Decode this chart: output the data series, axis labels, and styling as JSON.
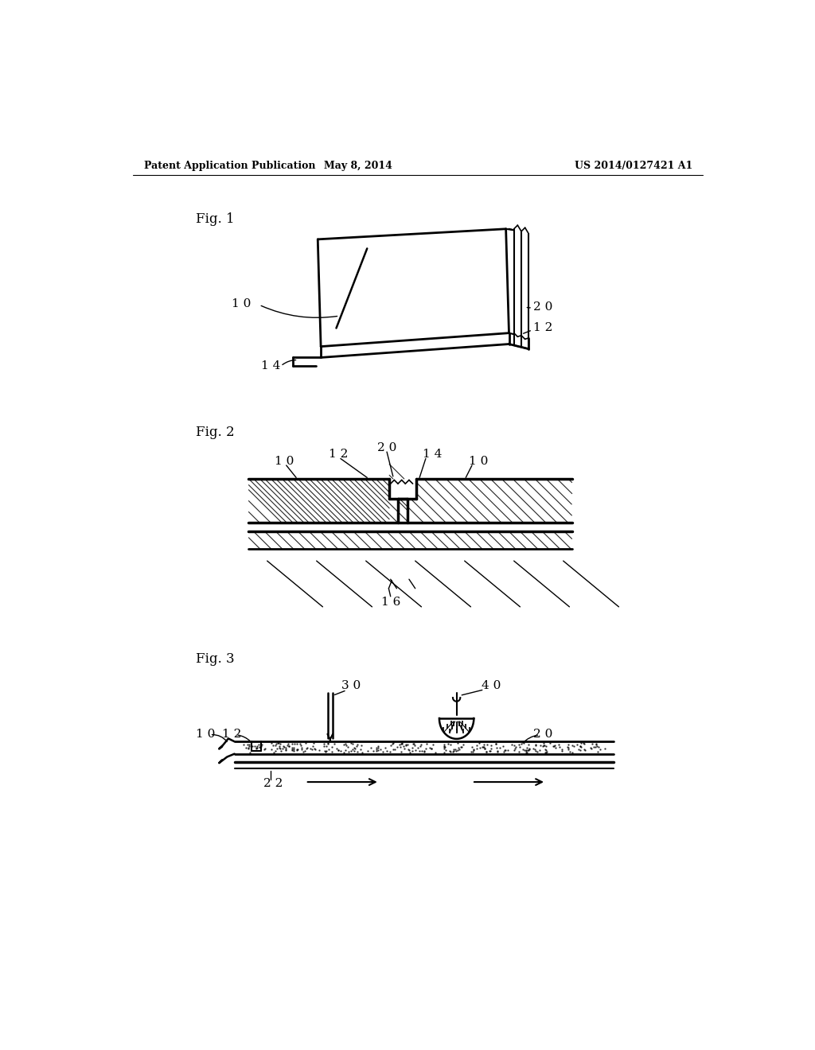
{
  "bg_color": "#ffffff",
  "lc": "#000000",
  "header_left": "Patent Application Publication",
  "header_center": "May 8, 2014",
  "header_right": "US 2014/0127421 A1",
  "fig1_label": "Fig. 1",
  "fig2_label": "Fig. 2",
  "fig3_label": "Fig. 3"
}
